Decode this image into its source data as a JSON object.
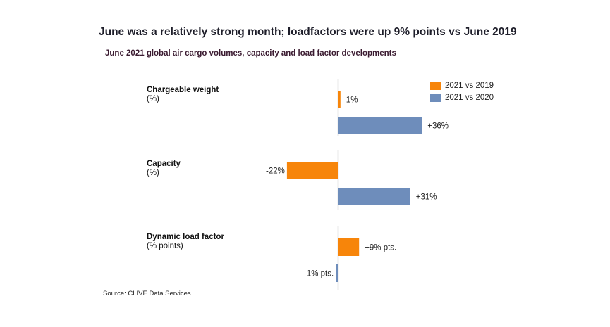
{
  "header": {
    "title": "June was a relatively strong month; loadfactors were up 9% points vs June 2019",
    "subtitle": "June 2021 global air cargo volumes, capacity and load factor developments"
  },
  "source": "Source: CLIVE Data Services",
  "colors": {
    "2021 vs 2019": "#F7850A",
    "2021 vs 2020": "#6E8DBB",
    "axis": "#8a8a8a"
  },
  "chart_data": {
    "type": "bar",
    "orientation": "horizontal",
    "title": "June 2021 global air cargo volumes, capacity and load factor developments",
    "categories": [
      {
        "name": "Chargeable weight",
        "unit": "(%)"
      },
      {
        "name": "Capacity",
        "unit": "(%)"
      },
      {
        "name": "Dynamic load factor",
        "unit": "(% points)"
      }
    ],
    "series": [
      {
        "name": "2021 vs 2019",
        "values": [
          1,
          -22,
          9
        ],
        "labels": [
          "1%",
          "-22%",
          "+9% pts."
        ]
      },
      {
        "name": "2021 vs 2020",
        "values": [
          36,
          31,
          -1
        ],
        "labels": [
          "+36%",
          "+31%",
          "-1% pts."
        ]
      }
    ],
    "xlabel": "",
    "ylabel": "",
    "xlim": [
      -25,
      40
    ],
    "grid": false,
    "legend": "top-right"
  }
}
